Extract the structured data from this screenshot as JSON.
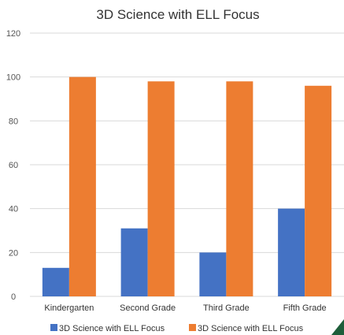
{
  "chart_data": {
    "type": "bar",
    "title": "3D Science with ELL Focus",
    "xlabel": "",
    "ylabel": "",
    "categories": [
      "Kindergarten",
      "Second Grade",
      "Third Grade",
      "Fifth Grade"
    ],
    "series": [
      {
        "name": "3D Science with ELL Focus",
        "color": "#4472c4",
        "values": [
          13,
          31,
          20,
          40
        ]
      },
      {
        "name": "3D Science with ELL Focus",
        "color": "#ed7d31",
        "values": [
          100,
          98,
          98,
          96
        ]
      }
    ],
    "ylim": [
      0,
      120
    ],
    "yticks": [
      0,
      20,
      40,
      60,
      80,
      100,
      120
    ],
    "grid": true,
    "legend_position": "bottom"
  }
}
